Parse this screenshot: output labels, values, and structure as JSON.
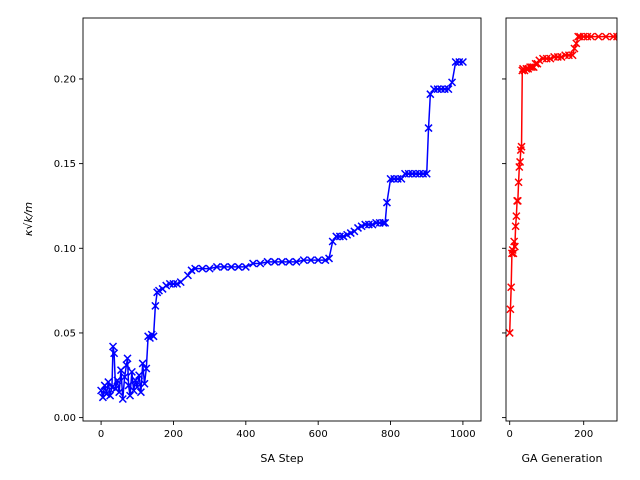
{
  "chart_data": [
    {
      "type": "line",
      "xlabel": "SA Step",
      "ylabel": "κ√k/m",
      "xlim": [
        -50,
        1050
      ],
      "ylim": [
        -0.002,
        0.236
      ],
      "xticks": [
        0,
        200,
        400,
        600,
        800,
        1000
      ],
      "yticks": [
        0.0,
        0.05,
        0.1,
        0.15,
        0.2
      ],
      "ytick_labels": [
        "0.00",
        "0.05",
        "0.10",
        "0.15",
        "0.20"
      ],
      "marker": "x",
      "grid": false,
      "series": [
        {
          "color": "#0000ff",
          "x": [
            0,
            5,
            10,
            15,
            20,
            25,
            30,
            33,
            36,
            40,
            45,
            50,
            55,
            60,
            65,
            70,
            73,
            76,
            80,
            85,
            90,
            95,
            100,
            105,
            110,
            115,
            120,
            125,
            130,
            135,
            140,
            145,
            150,
            155,
            160,
            170,
            180,
            190,
            200,
            210,
            220,
            240,
            250,
            260,
            280,
            300,
            320,
            340,
            360,
            380,
            400,
            420,
            440,
            460,
            480,
            500,
            520,
            540,
            560,
            580,
            600,
            620,
            630,
            640,
            650,
            660,
            670,
            680,
            690,
            700,
            710,
            720,
            730,
            740,
            750,
            760,
            770,
            780,
            785,
            790,
            800,
            810,
            820,
            830,
            840,
            850,
            860,
            870,
            880,
            890,
            900,
            905,
            910,
            920,
            930,
            940,
            950,
            960,
            970,
            980,
            990,
            1000
          ],
          "values": [
            0.016,
            0.012,
            0.019,
            0.014,
            0.021,
            0.013,
            0.018,
            0.042,
            0.038,
            0.017,
            0.022,
            0.015,
            0.028,
            0.011,
            0.024,
            0.031,
            0.035,
            0.019,
            0.013,
            0.027,
            0.016,
            0.022,
            0.018,
            0.025,
            0.015,
            0.032,
            0.02,
            0.029,
            0.048,
            0.047,
            0.049,
            0.048,
            0.066,
            0.074,
            0.075,
            0.076,
            0.078,
            0.079,
            0.079,
            0.079,
            0.08,
            0.084,
            0.087,
            0.088,
            0.088,
            0.088,
            0.089,
            0.089,
            0.089,
            0.089,
            0.089,
            0.091,
            0.091,
            0.092,
            0.092,
            0.092,
            0.092,
            0.092,
            0.093,
            0.093,
            0.093,
            0.093,
            0.094,
            0.104,
            0.107,
            0.107,
            0.107,
            0.108,
            0.109,
            0.11,
            0.112,
            0.113,
            0.114,
            0.114,
            0.114,
            0.115,
            0.115,
            0.115,
            0.115,
            0.127,
            0.141,
            0.141,
            0.141,
            0.141,
            0.144,
            0.144,
            0.144,
            0.144,
            0.144,
            0.144,
            0.144,
            0.171,
            0.191,
            0.194,
            0.194,
            0.194,
            0.194,
            0.194,
            0.198,
            0.21,
            0.21,
            0.21
          ]
        }
      ]
    },
    {
      "type": "line",
      "xlabel": "GA Generation",
      "ylabel": "",
      "xlim": [
        -10,
        290
      ],
      "ylim": [
        -0.002,
        0.236
      ],
      "xticks": [
        0,
        200
      ],
      "marker": "x",
      "grid": false,
      "series": [
        {
          "color": "#ff0000",
          "x": [
            0,
            2,
            4,
            6,
            8,
            10,
            12,
            14,
            16,
            18,
            20,
            22,
            24,
            26,
            28,
            30,
            32,
            34,
            36,
            40,
            45,
            50,
            55,
            60,
            65,
            70,
            75,
            80,
            90,
            100,
            110,
            120,
            130,
            140,
            150,
            160,
            170,
            175,
            180,
            185,
            190,
            200,
            210,
            220,
            240,
            260,
            280,
            290
          ],
          "values": [
            0.05,
            0.064,
            0.077,
            0.097,
            0.099,
            0.097,
            0.104,
            0.101,
            0.113,
            0.119,
            0.128,
            0.128,
            0.139,
            0.148,
            0.151,
            0.158,
            0.16,
            0.205,
            0.206,
            0.205,
            0.206,
            0.206,
            0.207,
            0.207,
            0.207,
            0.209,
            0.209,
            0.211,
            0.212,
            0.212,
            0.212,
            0.213,
            0.213,
            0.213,
            0.214,
            0.214,
            0.214,
            0.218,
            0.221,
            0.225,
            0.225,
            0.225,
            0.225,
            0.225,
            0.225,
            0.225,
            0.225,
            0.225
          ]
        }
      ]
    }
  ]
}
